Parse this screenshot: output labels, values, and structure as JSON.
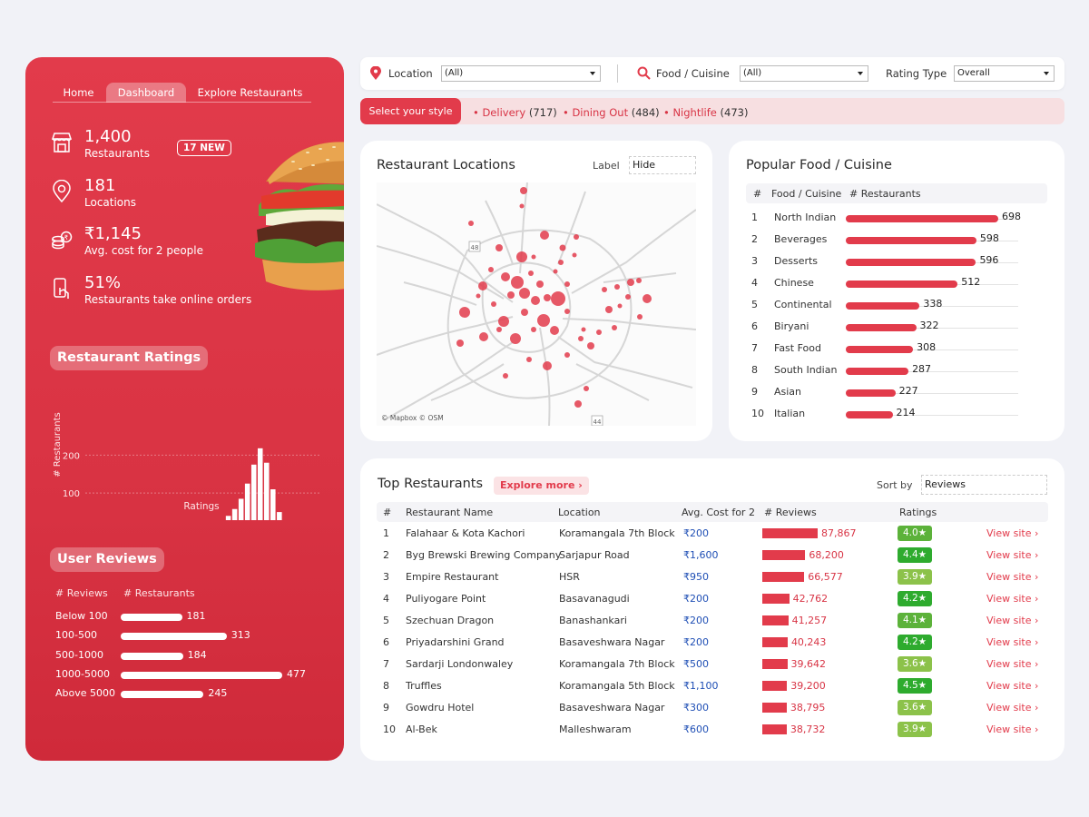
{
  "nav": {
    "tabs": [
      "Home",
      "Dashboard",
      "Explore Restaurants"
    ],
    "active": 1
  },
  "kpis": [
    {
      "value": "1,400",
      "label": "Restaurants",
      "badge": "17 NEW",
      "icon": "store-icon"
    },
    {
      "value": "181",
      "label": "Locations",
      "icon": "location-pin-icon"
    },
    {
      "value": "₹1,145",
      "label": "Avg. cost for 2 people",
      "icon": "coins-icon"
    },
    {
      "value": "51%",
      "label": "Restaurants take online orders",
      "icon": "phone-tap-icon"
    }
  ],
  "ratings": {
    "heading": "Restaurant Ratings",
    "chart_data": {
      "type": "bar",
      "xlabel": "Ratings",
      "ylabel": "# Restaurants",
      "xlim": [
        1.5,
        5.0
      ],
      "ylim": [
        0,
        220
      ],
      "xticks": [
        "1.5",
        "2.0",
        "2.5",
        "3.0",
        "3.5",
        "4.0",
        "4.5",
        "5.0"
      ],
      "yticks": [
        "0",
        "100",
        "200"
      ],
      "x": [
        3.1,
        3.2,
        3.3,
        3.4,
        3.5,
        3.6,
        3.7,
        3.8,
        3.9,
        4.0,
        4.1,
        4.2,
        4.3,
        4.4,
        4.5
      ],
      "values": [
        2,
        5,
        10,
        18,
        28,
        40,
        58,
        85,
        125,
        175,
        218,
        180,
        110,
        50,
        15
      ]
    }
  },
  "reviews": {
    "heading": "User Reviews",
    "col1": "# Reviews",
    "col2": "# Restaurants",
    "rows": [
      {
        "label": "Below 100",
        "value": 181
      },
      {
        "label": "100-500",
        "value": 313
      },
      {
        "label": "500-1000",
        "value": 184
      },
      {
        "label": "1000-5000",
        "value": 477
      },
      {
        "label": "Above 5000",
        "value": 245
      }
    ]
  },
  "filters": {
    "location_label": "Location",
    "location_value": "(All)",
    "cuisine_label": "Food / Cuisine",
    "cuisine_value": "(All)",
    "rating_label": "Rating Type",
    "rating_value": "Overall"
  },
  "styles": {
    "button": "Select your style",
    "items": [
      {
        "name": "Delivery",
        "count": "(717)"
      },
      {
        "name": "Dining Out",
        "count": "(484)"
      },
      {
        "name": "Nightlife",
        "count": "(473)"
      }
    ]
  },
  "locations": {
    "title": "Restaurant Locations",
    "label_text": "Label",
    "label_value": "Hide",
    "attribution": "© Mapbox © OSM",
    "road_markers": [
      "48",
      "44"
    ]
  },
  "cuisine": {
    "title": "Popular Food / Cuisine",
    "headers": [
      "#",
      "Food / Cuisine",
      "# Restaurants"
    ],
    "rows": [
      {
        "rank": "1",
        "name": "North Indian",
        "value": 698
      },
      {
        "rank": "2",
        "name": "Beverages",
        "value": 598
      },
      {
        "rank": "3",
        "name": "Desserts",
        "value": 596
      },
      {
        "rank": "4",
        "name": "Chinese",
        "value": 512
      },
      {
        "rank": "5",
        "name": "Continental",
        "value": 338
      },
      {
        "rank": "6",
        "name": "Biryani",
        "value": 322
      },
      {
        "rank": "7",
        "name": "Fast Food",
        "value": 308
      },
      {
        "rank": "8",
        "name": "South Indian",
        "value": 287
      },
      {
        "rank": "9",
        "name": "Asian",
        "value": 227
      },
      {
        "rank": "10",
        "name": "Italian",
        "value": 214
      }
    ]
  },
  "top": {
    "title": "Top Restaurants",
    "explore": "Explore more",
    "sort_label": "Sort by",
    "sort_value": "Reviews",
    "headers": [
      "#",
      "Restaurant Name",
      "Location",
      "Avg. Cost for 2",
      "# Reviews",
      "Ratings"
    ],
    "link_text": "View site",
    "rows": [
      {
        "rank": "1",
        "name": "Falahaar & Kota Kachori",
        "location": "Koramangala 7th Block",
        "cost": "₹200",
        "reviews": 87867,
        "reviews_text": "87,867",
        "rating": "4.0★"
      },
      {
        "rank": "2",
        "name": "Byg Brewski Brewing Company",
        "location": "Sarjapur Road",
        "cost": "₹1,600",
        "reviews": 68200,
        "reviews_text": "68,200",
        "rating": "4.4★"
      },
      {
        "rank": "3",
        "name": "Empire Restaurant",
        "location": "HSR",
        "cost": "₹950",
        "reviews": 66577,
        "reviews_text": "66,577",
        "rating": "3.9★"
      },
      {
        "rank": "4",
        "name": "Puliyogare Point",
        "location": "Basavanagudi",
        "cost": "₹200",
        "reviews": 42762,
        "reviews_text": "42,762",
        "rating": "4.2★"
      },
      {
        "rank": "5",
        "name": "Szechuan Dragon",
        "location": "Banashankari",
        "cost": "₹200",
        "reviews": 41257,
        "reviews_text": "41,257",
        "rating": "4.1★"
      },
      {
        "rank": "6",
        "name": "Priyadarshini Grand",
        "location": "Basaveshwara Nagar",
        "cost": "₹200",
        "reviews": 40243,
        "reviews_text": "40,243",
        "rating": "4.2★"
      },
      {
        "rank": "7",
        "name": "Sardarji Londonwaley",
        "location": "Koramangala 7th Block",
        "cost": "₹500",
        "reviews": 39642,
        "reviews_text": "39,642",
        "rating": "3.6★"
      },
      {
        "rank": "8",
        "name": "Truffles",
        "location": "Koramangala 5th Block",
        "cost": "₹1,100",
        "reviews": 39200,
        "reviews_text": "39,200",
        "rating": "4.5★"
      },
      {
        "rank": "9",
        "name": "Gowdru Hotel",
        "location": "Basaveshwara Nagar",
        "cost": "₹300",
        "reviews": 38795,
        "reviews_text": "38,795",
        "rating": "3.6★"
      },
      {
        "rank": "10",
        "name": "Al-Bek",
        "location": "Malleshwaram",
        "cost": "₹600",
        "reviews": 38732,
        "reviews_text": "38,732",
        "rating": "3.9★"
      }
    ]
  },
  "colors": {
    "accent": "#e23b4b",
    "rating_high": "#2eab2e",
    "rating_mid": "#5cb23a",
    "rating_low": "#8cc24a",
    "cost_blue": "#1f4fb5"
  }
}
